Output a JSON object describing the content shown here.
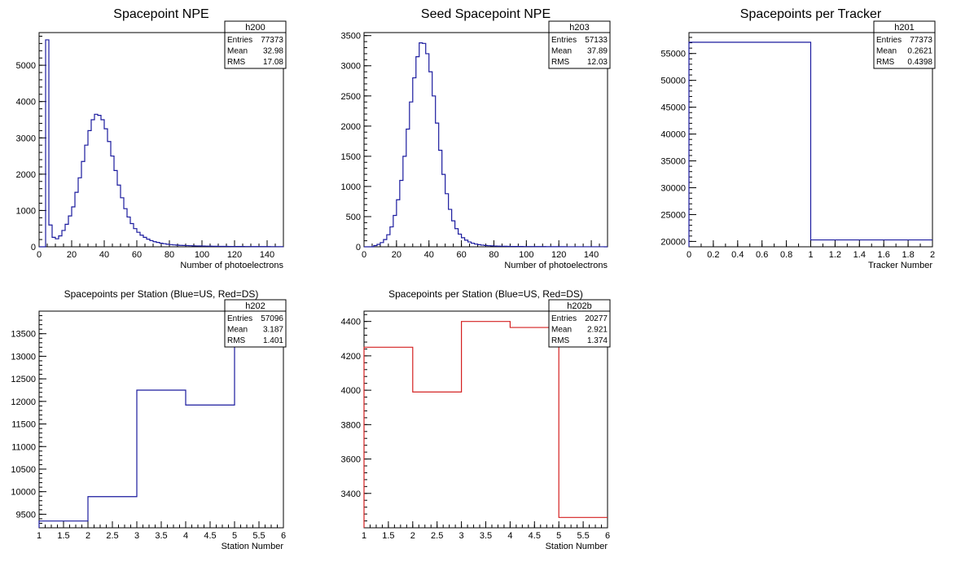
{
  "chart_data": [
    {
      "type": "histogram",
      "title": "Spacepoint NPE",
      "xlabel": "Number of photoelectrons",
      "ylabel": "",
      "xlim": [
        0,
        150
      ],
      "ylim": [
        0,
        5900
      ],
      "xticks": [
        0,
        20,
        40,
        60,
        80,
        100,
        120,
        140
      ],
      "xtick_labels": [
        "0",
        "20",
        "40",
        "60",
        "80",
        "100",
        "120",
        "140"
      ],
      "yticks": [
        0,
        1000,
        2000,
        3000,
        4000,
        5000
      ],
      "ytick_labels": [
        "0",
        "1000",
        "2000",
        "3000",
        "4000",
        "5000"
      ],
      "bin_edges": [
        0,
        150
      ],
      "values": [
        0,
        0,
        5700,
        600,
        260,
        220,
        300,
        450,
        620,
        850,
        1100,
        1500,
        1900,
        2350,
        2800,
        3200,
        3500,
        3650,
        3620,
        3500,
        3250,
        2900,
        2500,
        2100,
        1700,
        1350,
        1050,
        820,
        640,
        500,
        400,
        320,
        260,
        210,
        170,
        140,
        120,
        100,
        85,
        70,
        60,
        52,
        45,
        40,
        36,
        32,
        29,
        26,
        24,
        22,
        20,
        18,
        16,
        15,
        14,
        13,
        12,
        11,
        10,
        9,
        9,
        8,
        8,
        7,
        7,
        6,
        6,
        6,
        5,
        5,
        5,
        4,
        4,
        4,
        3
      ],
      "line_color": "#1a1a9e",
      "stats": {
        "name": "h200",
        "rows": [
          [
            "Entries",
            "77373"
          ],
          [
            "Mean",
            "32.98"
          ],
          [
            "RMS",
            "17.08"
          ]
        ]
      }
    },
    {
      "type": "histogram",
      "title": "Seed Spacepoint NPE",
      "xlabel": "Number of photoelectrons",
      "ylabel": "",
      "xlim": [
        0,
        150
      ],
      "ylim": [
        0,
        3550
      ],
      "xticks": [
        0,
        20,
        40,
        60,
        80,
        100,
        120,
        140
      ],
      "xtick_labels": [
        "0",
        "20",
        "40",
        "60",
        "80",
        "100",
        "120",
        "140"
      ],
      "yticks": [
        0,
        500,
        1000,
        1500,
        2000,
        2500,
        3000,
        3500
      ],
      "ytick_labels": [
        "0",
        "500",
        "1000",
        "1500",
        "2000",
        "2500",
        "3000",
        "3500"
      ],
      "bin_edges": [
        0,
        150
      ],
      "values": [
        0,
        0,
        0,
        20,
        40,
        70,
        120,
        200,
        330,
        520,
        780,
        1100,
        1500,
        1950,
        2400,
        2800,
        3150,
        3380,
        3370,
        3200,
        2900,
        2500,
        2050,
        1600,
        1200,
        880,
        620,
        430,
        300,
        210,
        150,
        110,
        80,
        60,
        45,
        35,
        28,
        22,
        18,
        15,
        12,
        10,
        9,
        8,
        7,
        6,
        6,
        5,
        5,
        4,
        4,
        4,
        3,
        3,
        3,
        3,
        2,
        2,
        2,
        2,
        2,
        2,
        1,
        1,
        1,
        1,
        1,
        1,
        1,
        1,
        1,
        1,
        1,
        1,
        0
      ],
      "line_color": "#1a1a9e",
      "stats": {
        "name": "h203",
        "rows": [
          [
            "Entries",
            "57133"
          ],
          [
            "Mean",
            "37.89"
          ],
          [
            "RMS",
            "12.03"
          ]
        ]
      }
    },
    {
      "type": "histogram",
      "title": "Spacepoints per Tracker",
      "xlabel": "Tracker Number",
      "ylabel": "",
      "xlim": [
        0,
        2
      ],
      "ylim": [
        19000,
        58900
      ],
      "xticks": [
        0,
        0.2,
        0.4,
        0.6,
        0.8,
        1,
        1.2,
        1.4,
        1.6,
        1.8,
        2
      ],
      "xtick_labels": [
        "0",
        "0.2",
        "0.4",
        "0.6",
        "0.8",
        "1",
        "1.2",
        "1.4",
        "1.6",
        "1.8",
        "2"
      ],
      "yticks": [
        20000,
        25000,
        30000,
        35000,
        40000,
        45000,
        50000,
        55000
      ],
      "ytick_labels": [
        "20000",
        "25000",
        "30000",
        "35000",
        "40000",
        "45000",
        "50000",
        "55000"
      ],
      "bin_edges": [
        0,
        2
      ],
      "values": [
        57096,
        20277
      ],
      "line_color": "#1a1a9e",
      "stats": {
        "name": "h201",
        "rows": [
          [
            "Entries",
            "77373"
          ],
          [
            "Mean",
            "0.2621"
          ],
          [
            "RMS",
            "0.4398"
          ]
        ]
      }
    },
    {
      "type": "histogram",
      "title": "Spacepoints per Station (Blue=US, Red=DS)",
      "xlabel": "Station Number",
      "ylabel": "",
      "xlim": [
        1,
        6
      ],
      "ylim": [
        9200,
        14000
      ],
      "xticks": [
        1,
        1.5,
        2,
        2.5,
        3,
        3.5,
        4,
        4.5,
        5,
        5.5,
        6
      ],
      "xtick_labels": [
        "1",
        "1.5",
        "2",
        "2.5",
        "3",
        "3.5",
        "4",
        "4.5",
        "5",
        "5.5",
        "6"
      ],
      "yticks": [
        9500,
        10000,
        10500,
        11000,
        11500,
        12000,
        12500,
        13000,
        13500
      ],
      "ytick_labels": [
        "9500",
        "10000",
        "10500",
        "11000",
        "11500",
        "12000",
        "12500",
        "13000",
        "13500"
      ],
      "bin_edges": [
        1,
        6
      ],
      "values": [
        9350,
        9890,
        12250,
        11920,
        13700
      ],
      "line_color": "#1a1a9e",
      "stats": {
        "name": "h202",
        "rows": [
          [
            "Entries",
            "57096"
          ],
          [
            "Mean",
            "3.187"
          ],
          [
            "RMS",
            "1.401"
          ]
        ]
      }
    },
    {
      "type": "histogram",
      "title": "Spacepoints per Station (Blue=US, Red=DS)",
      "xlabel": "Station Number",
      "ylabel": "",
      "xlim": [
        1,
        6
      ],
      "ylim": [
        3200,
        4460
      ],
      "xticks": [
        1,
        1.5,
        2,
        2.5,
        3,
        3.5,
        4,
        4.5,
        5,
        5.5,
        6
      ],
      "xtick_labels": [
        "1",
        "1.5",
        "2",
        "2.5",
        "3",
        "3.5",
        "4",
        "4.5",
        "5",
        "5.5",
        "6"
      ],
      "yticks": [
        3400,
        3600,
        3800,
        4000,
        4200,
        4400
      ],
      "ytick_labels": [
        "3400",
        "3600",
        "3800",
        "4000",
        "4200",
        "4400"
      ],
      "bin_edges": [
        1,
        6
      ],
      "values": [
        4250,
        3990,
        4400,
        4365,
        3260
      ],
      "line_color": "#d42020",
      "stats": {
        "name": "h202b",
        "rows": [
          [
            "Entries",
            "20277"
          ],
          [
            "Mean",
            "2.921"
          ],
          [
            "RMS",
            "1.374"
          ]
        ]
      }
    }
  ]
}
